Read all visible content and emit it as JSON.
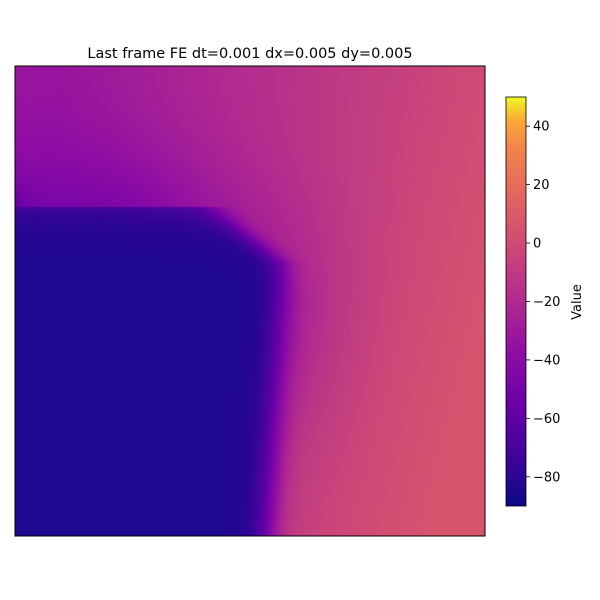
{
  "chart_data": {
    "type": "heatmap",
    "title": "Last frame FE dt=0.001 dx=0.005 dy=0.005",
    "xlabel": "",
    "ylabel": "",
    "colormap": "plasma",
    "colorbar": {
      "label": "Value",
      "vmin": -90,
      "vmax": 50,
      "ticks": [
        40,
        20,
        0,
        -20,
        -40,
        -60,
        -80
      ],
      "tick_labels": [
        "40",
        "20",
        "0",
        "−20",
        "−40",
        "−60",
        "−80"
      ]
    },
    "axes_ticks_visible": false,
    "grid": false,
    "field_description": "Low-value region (about -85) occupies the lower-left, bounded by a steep front; values rise toward about +5 on the lower-right and about -15 along the top edge.",
    "approx_values": {
      "lower_left_region": -85,
      "upper_left_corner": -30,
      "top_center": -25,
      "top_right_corner": -5,
      "center_right": -10,
      "bottom_right_corner": 5
    }
  }
}
